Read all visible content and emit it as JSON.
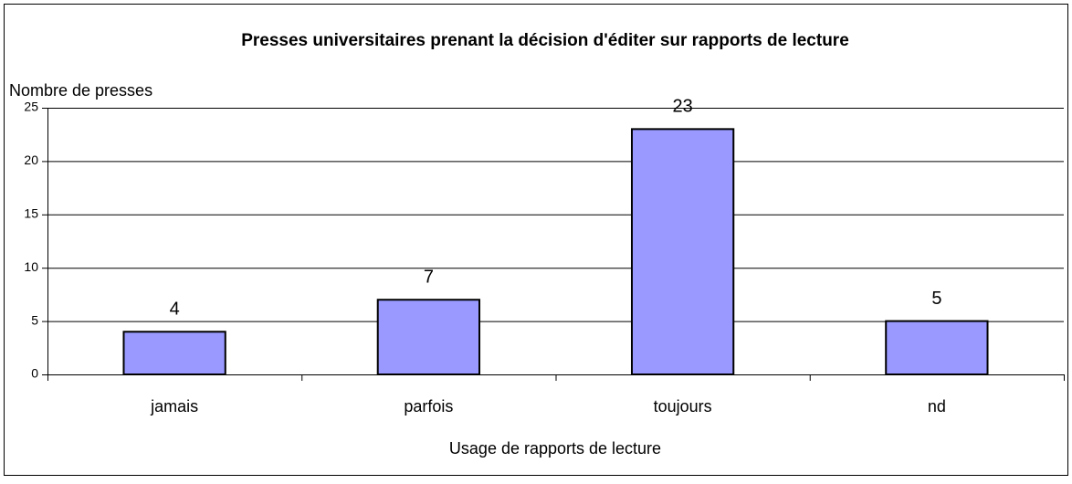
{
  "chart_data": {
    "type": "bar",
    "title": "Presses universitaires prenant la décision d'éditer sur rapports de lecture",
    "y_label": "Nombre de presses",
    "x_label": "Usage de rapports de lecture",
    "categories": [
      "jamais",
      "parfois",
      "toujours",
      "nd"
    ],
    "values": [
      4,
      7,
      23,
      5
    ],
    "color": "#9999ff",
    "ylim": [
      0,
      25
    ],
    "yticks": [
      0,
      5,
      10,
      15,
      20,
      25
    ],
    "grid": true
  }
}
